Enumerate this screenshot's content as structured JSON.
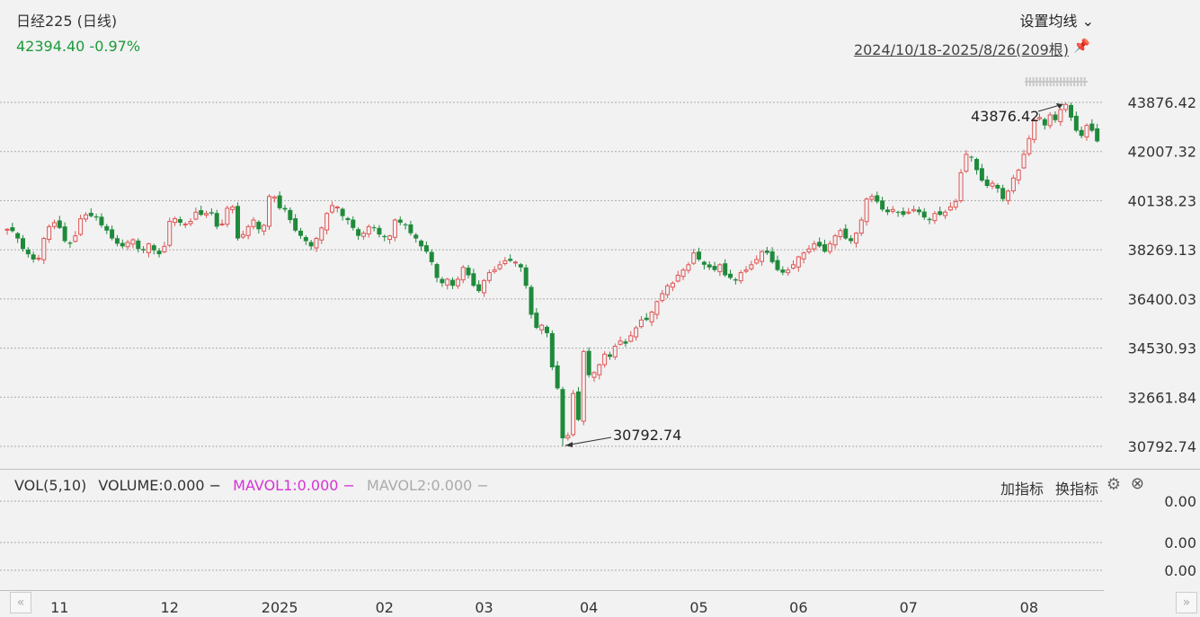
{
  "header": {
    "title": "日经225 (日线)",
    "quote": "42394.40 -0.97%",
    "ma_button": "设置均线 ⌄",
    "date_range": "2024/10/18-2025/8/26(209根)",
    "pin_icon": "pin-icon"
  },
  "volume_panel": {
    "name": "VOL(5,10)",
    "volume": "VOLUME:0.000",
    "mavol1": "MAVOL1:0.000",
    "mavol2": "MAVOL2:0.000",
    "add_indicator": "加指标",
    "switch_indicator": "换指标",
    "axis_labels": [
      "0.00",
      "0.00",
      "0.00"
    ]
  },
  "colors": {
    "up": "#e05555",
    "down": "#1f8a3b",
    "grid": "#aaaaaa",
    "mavol1": "#d633d6"
  },
  "chart_data": {
    "type": "candlestick",
    "title": "日经225 (日线)",
    "y_ticks": [
      43876.42,
      42007.32,
      40138.23,
      38269.13,
      36400.03,
      34530.93,
      32661.84,
      30792.74
    ],
    "ylim": [
      30792.74,
      43876.42
    ],
    "x_tick_labels": [
      {
        "label": "11",
        "index": 10
      },
      {
        "label": "12",
        "index": 31
      },
      {
        "label": "2025",
        "index": 52
      },
      {
        "label": "02",
        "index": 72
      },
      {
        "label": "03",
        "index": 91
      },
      {
        "label": "04",
        "index": 111
      },
      {
        "label": "05",
        "index": 132
      },
      {
        "label": "06",
        "index": 151
      },
      {
        "label": "07",
        "index": 172
      },
      {
        "label": "08",
        "index": 195
      }
    ],
    "annotations": [
      {
        "label": "43876.42",
        "type": "high"
      },
      {
        "label": "30792.74",
        "type": "low"
      }
    ],
    "candle_count": 209,
    "closes": [
      39050,
      38980,
      38700,
      38300,
      38100,
      37900,
      37950,
      38700,
      39150,
      39300,
      39100,
      38600,
      38500,
      38800,
      39450,
      39600,
      39550,
      39500,
      39200,
      39000,
      38700,
      38500,
      38400,
      38550,
      38650,
      38300,
      38250,
      38500,
      38250,
      38100,
      38400,
      39350,
      39450,
      39300,
      39250,
      39350,
      39700,
      39600,
      39650,
      39650,
      39150,
      39250,
      39850,
      39900,
      38700,
      38850,
      39150,
      39400,
      39050,
      39200,
      40300,
      40280,
      39850,
      39800,
      39400,
      39000,
      38800,
      38600,
      38400,
      38700,
      39100,
      39650,
      39950,
      39900,
      39550,
      39400,
      39100,
      38800,
      38900,
      39150,
      39100,
      38850,
      38750,
      38800,
      39400,
      39300,
      39200,
      38900,
      38700,
      38400,
      38200,
      37800,
      37200,
      37000,
      37150,
      36900,
      37150,
      37600,
      37300,
      36900,
      36700,
      37100,
      37400,
      37500,
      37700,
      37850,
      37850,
      37800,
      37600,
      36900,
      35800,
      35300,
      35400,
      35100,
      33800,
      33000,
      31100,
      31200,
      32800,
      31800,
      34400,
      33500,
      33600,
      33900,
      34300,
      34200,
      34600,
      34800,
      34700,
      35000,
      35300,
      35600,
      35600,
      35900,
      36300,
      36600,
      36900,
      37000,
      37300,
      37500,
      37700,
      38150,
      37900,
      37700,
      37600,
      37500,
      37700,
      37300,
      37200,
      37100,
      37400,
      37500,
      37700,
      37900,
      38200,
      38150,
      37800,
      37500,
      37400,
      37500,
      37700,
      38000,
      38150,
      38300,
      38500,
      38400,
      38200,
      38500,
      38800,
      39000,
      38700,
      38600,
      38900,
      39400,
      40200,
      40300,
      40100,
      39800,
      39700,
      39800,
      39700,
      39600,
      39700,
      39800,
      39700,
      39500,
      39400,
      39650,
      39600,
      39700,
      39900,
      40100,
      41200,
      41900,
      41800,
      41300,
      40900,
      40700,
      40800,
      40600,
      40200,
      40500,
      41000,
      41300,
      41900,
      42500,
      43200,
      43300,
      43000,
      43400,
      43200,
      43600,
      43800,
      43300,
      42800,
      42600,
      43000,
      42800,
      42394.4
    ]
  }
}
